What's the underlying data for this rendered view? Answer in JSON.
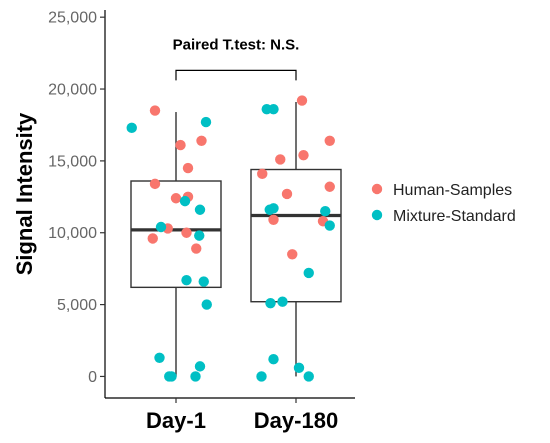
{
  "chart_data": {
    "type": "box",
    "ylabel": "Signal Intensity",
    "xlabel": "",
    "ylim": [
      -1500,
      25500
    ],
    "yticks": [
      0,
      5000,
      10000,
      15000,
      20000,
      25000
    ],
    "ytick_labels": [
      "0",
      "5,000",
      "10,000",
      "15,000",
      "20,000",
      "25,000"
    ],
    "categories": [
      "Day-1",
      "Day-180"
    ],
    "boxes": [
      {
        "category": "Day-1",
        "whisker_low": 0,
        "q1": 6200,
        "median": 10200,
        "q3": 13600,
        "whisker_high": 18400
      },
      {
        "category": "Day-180",
        "whisker_low": 0,
        "q1": 5200,
        "median": 11200,
        "q3": 14400,
        "whisker_high": 19100
      }
    ],
    "annotation": {
      "text": "Paired T.test: N.S.",
      "bracket_y": 21300,
      "drop_y": 20600
    },
    "legend": {
      "position": "right"
    },
    "series": [
      {
        "name": "Human-Samples",
        "color": "#F8766D",
        "points": [
          {
            "category": "Day-1",
            "jitter": -0.28,
            "y": 18500
          },
          {
            "category": "Day-1",
            "jitter": 0.06,
            "y": 16100
          },
          {
            "category": "Day-1",
            "jitter": 0.34,
            "y": 16400
          },
          {
            "category": "Day-1",
            "jitter": 0.16,
            "y": 14500
          },
          {
            "category": "Day-1",
            "jitter": -0.28,
            "y": 13400
          },
          {
            "category": "Day-1",
            "jitter": 0.0,
            "y": 12400
          },
          {
            "category": "Day-1",
            "jitter": 0.16,
            "y": 12500
          },
          {
            "category": "Day-1",
            "jitter": -0.11,
            "y": 10300
          },
          {
            "category": "Day-1",
            "jitter": 0.14,
            "y": 10000
          },
          {
            "category": "Day-1",
            "jitter": -0.31,
            "y": 9600
          },
          {
            "category": "Day-1",
            "jitter": 0.27,
            "y": 8900
          },
          {
            "category": "Day-180",
            "jitter": 0.08,
            "y": 19200
          },
          {
            "category": "Day-180",
            "jitter": 0.45,
            "y": 16400
          },
          {
            "category": "Day-180",
            "jitter": 0.1,
            "y": 15400
          },
          {
            "category": "Day-180",
            "jitter": -0.21,
            "y": 15100
          },
          {
            "category": "Day-180",
            "jitter": -0.45,
            "y": 14100
          },
          {
            "category": "Day-180",
            "jitter": 0.45,
            "y": 13200
          },
          {
            "category": "Day-180",
            "jitter": -0.12,
            "y": 12700
          },
          {
            "category": "Day-180",
            "jitter": -0.3,
            "y": 10900
          },
          {
            "category": "Day-180",
            "jitter": 0.36,
            "y": 10800
          },
          {
            "category": "Day-180",
            "jitter": -0.05,
            "y": 8500
          }
        ]
      },
      {
        "name": "Mixture-Standard",
        "color": "#00BFC4",
        "points": [
          {
            "category": "Day-1",
            "jitter": 0.4,
            "y": 17700
          },
          {
            "category": "Day-1",
            "jitter": -0.59,
            "y": 17300
          },
          {
            "category": "Day-1",
            "jitter": 0.12,
            "y": 12200
          },
          {
            "category": "Day-1",
            "jitter": 0.32,
            "y": 11600
          },
          {
            "category": "Day-1",
            "jitter": -0.2,
            "y": 10400
          },
          {
            "category": "Day-1",
            "jitter": 0.31,
            "y": 9800
          },
          {
            "category": "Day-1",
            "jitter": 0.14,
            "y": 6700
          },
          {
            "category": "Day-1",
            "jitter": 0.37,
            "y": 6600
          },
          {
            "category": "Day-1",
            "jitter": 0.41,
            "y": 5000
          },
          {
            "category": "Day-1",
            "jitter": -0.22,
            "y": 1300
          },
          {
            "category": "Day-1",
            "jitter": 0.32,
            "y": 700
          },
          {
            "category": "Day-1",
            "jitter": -0.06,
            "y": 0
          },
          {
            "category": "Day-1",
            "jitter": -0.09,
            "y": 0
          },
          {
            "category": "Day-1",
            "jitter": 0.26,
            "y": 0
          },
          {
            "category": "Day-180",
            "jitter": -0.3,
            "y": 18600
          },
          {
            "category": "Day-180",
            "jitter": -0.39,
            "y": 18600
          },
          {
            "category": "Day-180",
            "jitter": -0.3,
            "y": 11700
          },
          {
            "category": "Day-180",
            "jitter": -0.35,
            "y": 11600
          },
          {
            "category": "Day-180",
            "jitter": 0.39,
            "y": 11500
          },
          {
            "category": "Day-180",
            "jitter": 0.45,
            "y": 10500
          },
          {
            "category": "Day-180",
            "jitter": 0.17,
            "y": 7200
          },
          {
            "category": "Day-180",
            "jitter": -0.34,
            "y": 5100
          },
          {
            "category": "Day-180",
            "jitter": -0.18,
            "y": 5200
          },
          {
            "category": "Day-180",
            "jitter": -0.3,
            "y": 1200
          },
          {
            "category": "Day-180",
            "jitter": 0.04,
            "y": 600
          },
          {
            "category": "Day-180",
            "jitter": -0.46,
            "y": 0
          },
          {
            "category": "Day-180",
            "jitter": 0.17,
            "y": 0
          }
        ]
      }
    ]
  }
}
